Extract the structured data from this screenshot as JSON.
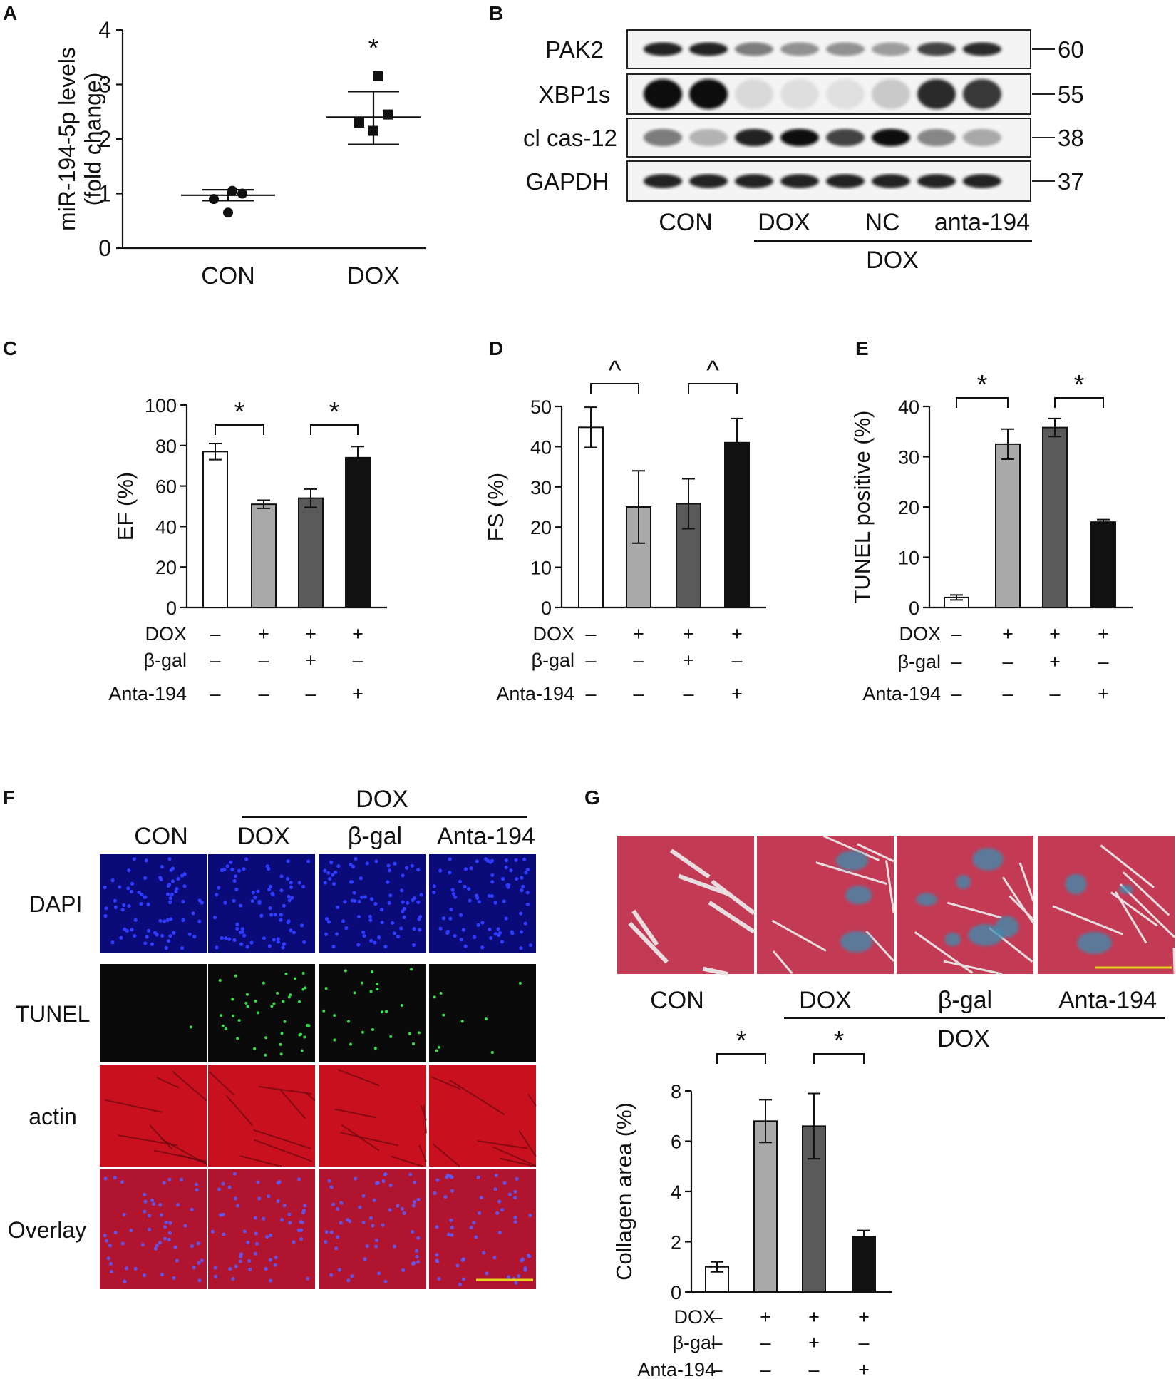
{
  "panel_letters": {
    "a": "A",
    "b": "B",
    "c": "C",
    "d": "D",
    "e": "E",
    "f": "F",
    "g": "G"
  },
  "chart_data": [
    {
      "panel": "A",
      "type": "scatter",
      "ylabel": "miR-194-5p levels (fold change)",
      "ylabel_lines": [
        "miR-194-5p levels",
        "(fold change)"
      ],
      "ylim": [
        0,
        4
      ],
      "yticks": [
        0,
        1,
        2,
        3,
        4
      ],
      "categories": [
        "CON",
        "DOX"
      ],
      "groups": [
        {
          "name": "CON",
          "marker": "circle",
          "points": [
            0.65,
            0.9,
            1.0,
            1.05
          ],
          "mean": 0.97,
          "sd_low": 0.87,
          "sd_high": 1.07
        },
        {
          "name": "DOX",
          "marker": "square",
          "points": [
            2.15,
            2.3,
            2.45,
            3.15
          ],
          "mean": 2.4,
          "sd_low": 1.9,
          "sd_high": 2.87
        }
      ],
      "annotations": [
        {
          "text": "*",
          "group": "DOX"
        }
      ]
    },
    {
      "panel": "C",
      "type": "bar",
      "ylabel": "EF (%)",
      "ylim": [
        0,
        100
      ],
      "yticks": [
        0,
        20,
        40,
        60,
        80,
        100
      ],
      "values": [
        77,
        51,
        54,
        74
      ],
      "errors": [
        4,
        2,
        4.5,
        5.5
      ],
      "bar_colors": [
        "#ffffff",
        "#a9a9a9",
        "#5a5a5a",
        "#111111"
      ],
      "conditions": [
        {
          "label": "DOX",
          "marks": [
            "–",
            "+",
            "+",
            "+"
          ]
        },
        {
          "label": "β-gal",
          "marks": [
            "–",
            "–",
            "+",
            "–"
          ]
        },
        {
          "label": "Anta-194",
          "marks": [
            "–",
            "–",
            "–",
            "+"
          ]
        }
      ],
      "significance": [
        {
          "from": 0,
          "to": 1,
          "text": "*"
        },
        {
          "from": 2,
          "to": 3,
          "text": "*"
        }
      ]
    },
    {
      "panel": "D",
      "type": "bar",
      "ylabel": "FS (%)",
      "ylim": [
        0,
        50
      ],
      "yticks": [
        0,
        10,
        20,
        30,
        40,
        50
      ],
      "values": [
        44.8,
        25,
        25.8,
        41
      ],
      "errors": [
        5,
        9,
        6.2,
        6
      ],
      "bar_colors": [
        "#ffffff",
        "#a9a9a9",
        "#5a5a5a",
        "#111111"
      ],
      "conditions": [
        {
          "label": "DOX",
          "marks": [
            "–",
            "+",
            "+",
            "+"
          ]
        },
        {
          "label": "β-gal",
          "marks": [
            "–",
            "–",
            "+",
            "–"
          ]
        },
        {
          "label": "Anta-194",
          "marks": [
            "–",
            "–",
            "–",
            "+"
          ]
        }
      ],
      "significance": [
        {
          "from": 0,
          "to": 1,
          "text": "^"
        },
        {
          "from": 2,
          "to": 3,
          "text": "^"
        }
      ]
    },
    {
      "panel": "E",
      "type": "bar",
      "ylabel": "TUNEL positive (%)",
      "ylim": [
        0,
        40
      ],
      "yticks": [
        0,
        10,
        20,
        30,
        40
      ],
      "values": [
        2,
        32.5,
        35.8,
        17
      ],
      "errors": [
        0.5,
        3,
        1.8,
        0.5
      ],
      "bar_colors": [
        "#ffffff",
        "#a9a9a9",
        "#5a5a5a",
        "#111111"
      ],
      "conditions": [
        {
          "label": "DOX",
          "marks": [
            "–",
            "+",
            "+",
            "+"
          ]
        },
        {
          "label": "β-gal",
          "marks": [
            "–",
            "–",
            "+",
            "–"
          ]
        },
        {
          "label": "Anta-194",
          "marks": [
            "–",
            "–",
            "–",
            "+"
          ]
        }
      ],
      "significance": [
        {
          "from": 0,
          "to": 1,
          "text": "*"
        },
        {
          "from": 2,
          "to": 3,
          "text": "*"
        }
      ]
    },
    {
      "panel": "G",
      "type": "bar",
      "ylabel": "Collagen area (%)",
      "ylim": [
        0,
        8
      ],
      "yticks": [
        0,
        2,
        4,
        6,
        8
      ],
      "values": [
        1,
        6.8,
        6.6,
        2.2
      ],
      "errors": [
        0.2,
        0.85,
        1.3,
        0.25
      ],
      "bar_colors": [
        "#ffffff",
        "#a9a9a9",
        "#5a5a5a",
        "#111111"
      ],
      "conditions": [
        {
          "label": "DOX",
          "marks": [
            "–",
            "+",
            "+",
            "+"
          ]
        },
        {
          "label": "β-gal",
          "marks": [
            "–",
            "–",
            "+",
            "–"
          ]
        },
        {
          "label": "Anta-194",
          "marks": [
            "–",
            "–",
            "–",
            "+"
          ]
        }
      ],
      "significance": [
        {
          "from": 0,
          "to": 1,
          "text": "*"
        },
        {
          "from": 2,
          "to": 3,
          "text": "*"
        }
      ]
    }
  ],
  "western_blot": {
    "rows": [
      {
        "label": "PAK2",
        "kda": "60",
        "intensity": [
          0.9,
          0.9,
          0.5,
          0.4,
          0.4,
          0.35,
          0.75,
          0.85
        ],
        "thick": 0.35
      },
      {
        "label": "XBP1s",
        "kda": "55",
        "intensity": [
          1.0,
          1.0,
          0.08,
          0.06,
          0.05,
          0.15,
          0.85,
          0.8
        ],
        "thick": 0.75
      },
      {
        "label": "cl cas-12",
        "kda": "38",
        "intensity": [
          0.5,
          0.25,
          0.9,
          1.0,
          0.75,
          1.0,
          0.45,
          0.3
        ],
        "thick": 0.45
      },
      {
        "label": "GAPDH",
        "kda": "37",
        "intensity": [
          0.9,
          0.9,
          0.9,
          0.9,
          0.9,
          0.9,
          0.9,
          0.9
        ],
        "thick": 0.35
      }
    ],
    "lane_groups": [
      "CON",
      "DOX",
      "NC",
      "anta-194"
    ],
    "bracket_label": "DOX"
  },
  "panel_f": {
    "header": "DOX",
    "columns": [
      "CON",
      "DOX",
      "β-gal",
      "Anta-194"
    ],
    "rows": [
      "DAPI",
      "TUNEL",
      "actin",
      "Overlay"
    ]
  },
  "panel_g_images": {
    "columns": [
      "CON",
      "DOX",
      "β-gal",
      "Anta-194"
    ],
    "bracket_label": "DOX"
  },
  "colors": {
    "dapi": "#0a0a78",
    "tunel": "#0a0a0a",
    "actin": "#c8101e",
    "overlay": "#b0142e",
    "masson": "#c33a55",
    "scalebar": "#e6d21a"
  }
}
